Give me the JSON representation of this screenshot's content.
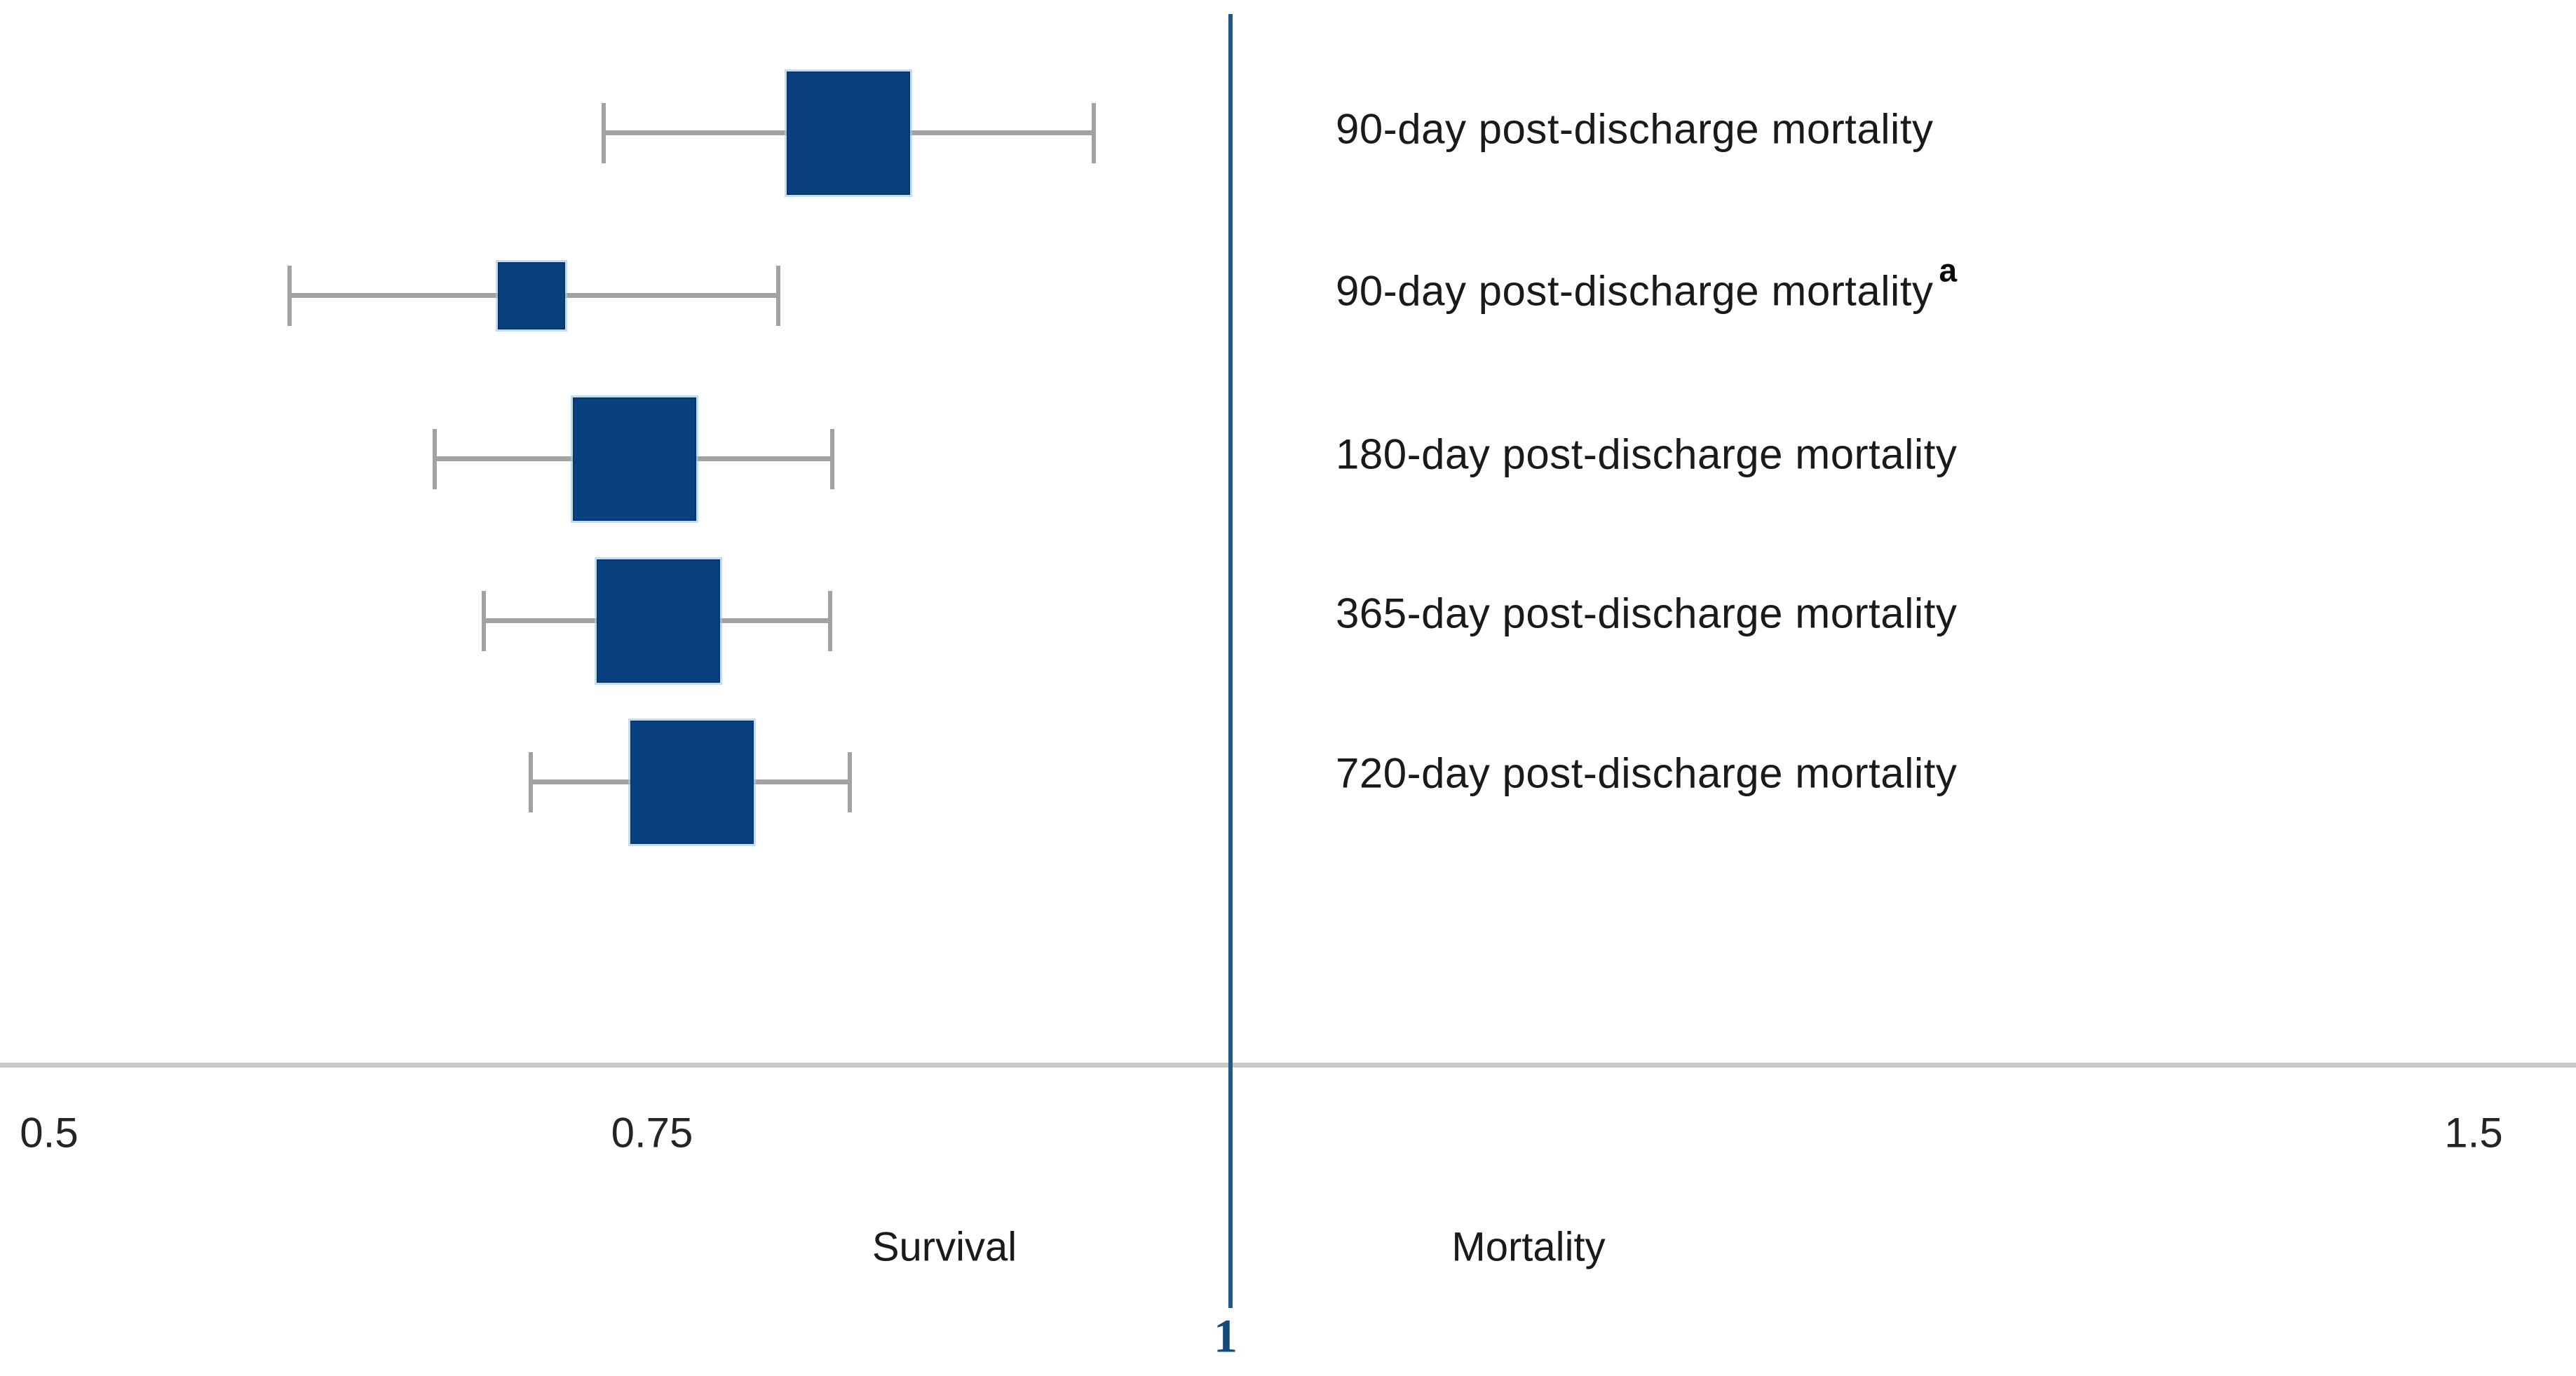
{
  "axis": {
    "tick_labels": [
      "0.5",
      "0.75",
      "1.5"
    ],
    "reference_line_label": "1",
    "survival_label": "Survival",
    "mortality_label": "Mortality"
  },
  "colors": {
    "marker_fill": "#094180",
    "marker_edge": "#a0cbe8",
    "ci_line": "#a2a2a2",
    "axis_line": "#c9c9c9",
    "reference_line": "#20588a",
    "reference_label_text": "#154a7c",
    "text": "#1a1a1a"
  },
  "chart_data": {
    "type": "forest",
    "title": "",
    "x_axis": {
      "scale": "linear",
      "tick_values": [
        0.5,
        0.75,
        1.5
      ],
      "reference_line": 1.0,
      "range_shown": [
        0.5,
        1.5
      ]
    },
    "direction_labels": {
      "left_of_reference": "Survival",
      "right_of_reference": "Mortality"
    },
    "rows": [
      {
        "label": "90-day post-discharge mortality",
        "footnote_marker": "",
        "estimate": 0.83,
        "ci_low": 0.73,
        "ci_high": 0.93,
        "box_relative_size": 1.0
      },
      {
        "label": "90-day post-discharge mortality",
        "footnote_marker": "a",
        "estimate": 0.7,
        "ci_low": 0.6,
        "ci_high": 0.8,
        "box_relative_size": 0.55
      },
      {
        "label": "180-day post-discharge mortality",
        "footnote_marker": "",
        "estimate": 0.74,
        "ci_low": 0.66,
        "ci_high": 0.82,
        "box_relative_size": 1.0
      },
      {
        "label": "365-day post-discharge mortality",
        "footnote_marker": "",
        "estimate": 0.75,
        "ci_low": 0.68,
        "ci_high": 0.82,
        "box_relative_size": 1.0
      },
      {
        "label": "720-day post-discharge mortality",
        "footnote_marker": "",
        "estimate": 0.77,
        "ci_low": 0.7,
        "ci_high": 0.83,
        "box_relative_size": 1.0
      }
    ]
  }
}
